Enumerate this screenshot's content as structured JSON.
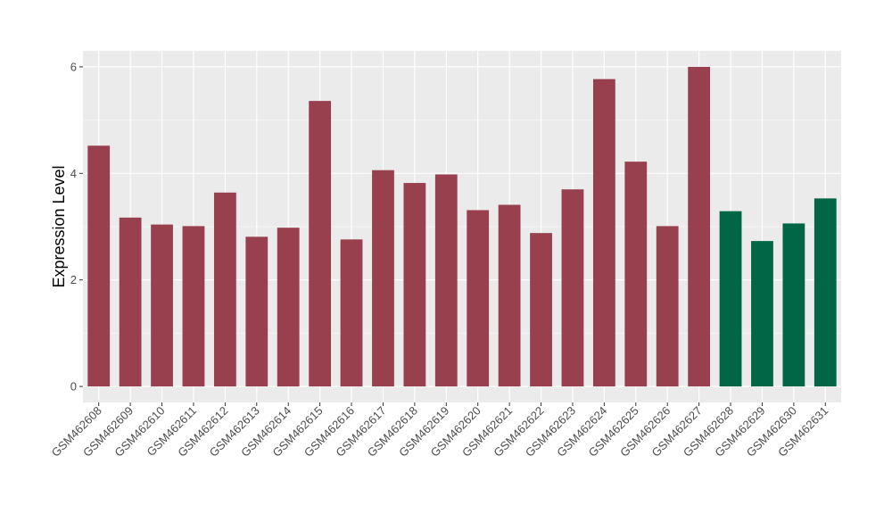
{
  "chart_data": {
    "type": "bar",
    "title": "",
    "xlabel": "",
    "ylabel": "Expression Level",
    "ylim": [
      -0.3,
      6.3
    ],
    "yticks": [
      0,
      2,
      4,
      6
    ],
    "grid": true,
    "legend": "none",
    "colors": {
      "panel_background": "#ebebeb",
      "grid_major": "#ffffff",
      "grid_minor": "#f5f5f5",
      "group_a": "#99404f",
      "group_b": "#006646",
      "axis_text": "#4d4d4d",
      "axis_title": "#000000"
    },
    "categories": [
      "GSM462608",
      "GSM462609",
      "GSM462610",
      "GSM462611",
      "GSM462612",
      "GSM462613",
      "GSM462614",
      "GSM462615",
      "GSM462616",
      "GSM462617",
      "GSM462618",
      "GSM462619",
      "GSM462620",
      "GSM462621",
      "GSM462622",
      "GSM462623",
      "GSM462624",
      "GSM462625",
      "GSM462626",
      "GSM462627",
      "GSM462628",
      "GSM462629",
      "GSM462630",
      "GSM462631"
    ],
    "values": [
      4.52,
      3.17,
      3.04,
      3.01,
      3.64,
      2.81,
      2.98,
      5.36,
      2.76,
      4.06,
      3.82,
      3.98,
      3.31,
      3.41,
      2.88,
      3.7,
      5.77,
      4.22,
      3.01,
      6.0,
      3.29,
      2.73,
      3.06,
      3.53
    ],
    "bar_groups": [
      "a",
      "a",
      "a",
      "a",
      "a",
      "a",
      "a",
      "a",
      "a",
      "a",
      "a",
      "a",
      "a",
      "a",
      "a",
      "a",
      "a",
      "a",
      "a",
      "a",
      "b",
      "b",
      "b",
      "b"
    ]
  }
}
